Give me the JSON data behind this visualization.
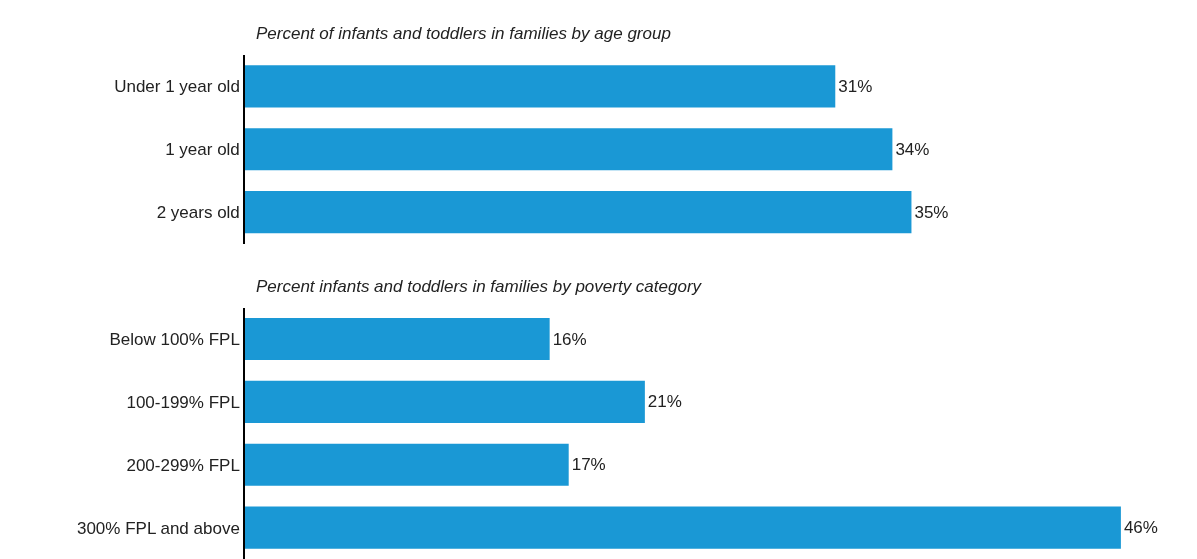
{
  "chart_data": [
    {
      "type": "bar",
      "orientation": "horizontal",
      "title": "Percent of infants and toddlers in families by age group",
      "categories": [
        "Under 1 year old",
        "1 year old",
        "2 years old"
      ],
      "values": [
        31,
        34,
        35
      ],
      "value_labels": [
        "31%",
        "34%",
        "35%"
      ],
      "color": "#1a98d5",
      "tick_labels": "y"
    },
    {
      "type": "bar",
      "orientation": "horizontal",
      "title": "Percent infants and toddlers in families by poverty category",
      "categories": [
        "Below 100% FPL",
        "100-199% FPL",
        "200-299% FPL",
        "300% FPL and above"
      ],
      "values": [
        16,
        21,
        17,
        46
      ],
      "value_labels": [
        "16%",
        "21%",
        "17%",
        "46%"
      ],
      "color": "#1a98d5",
      "tick_labels": "y"
    }
  ]
}
